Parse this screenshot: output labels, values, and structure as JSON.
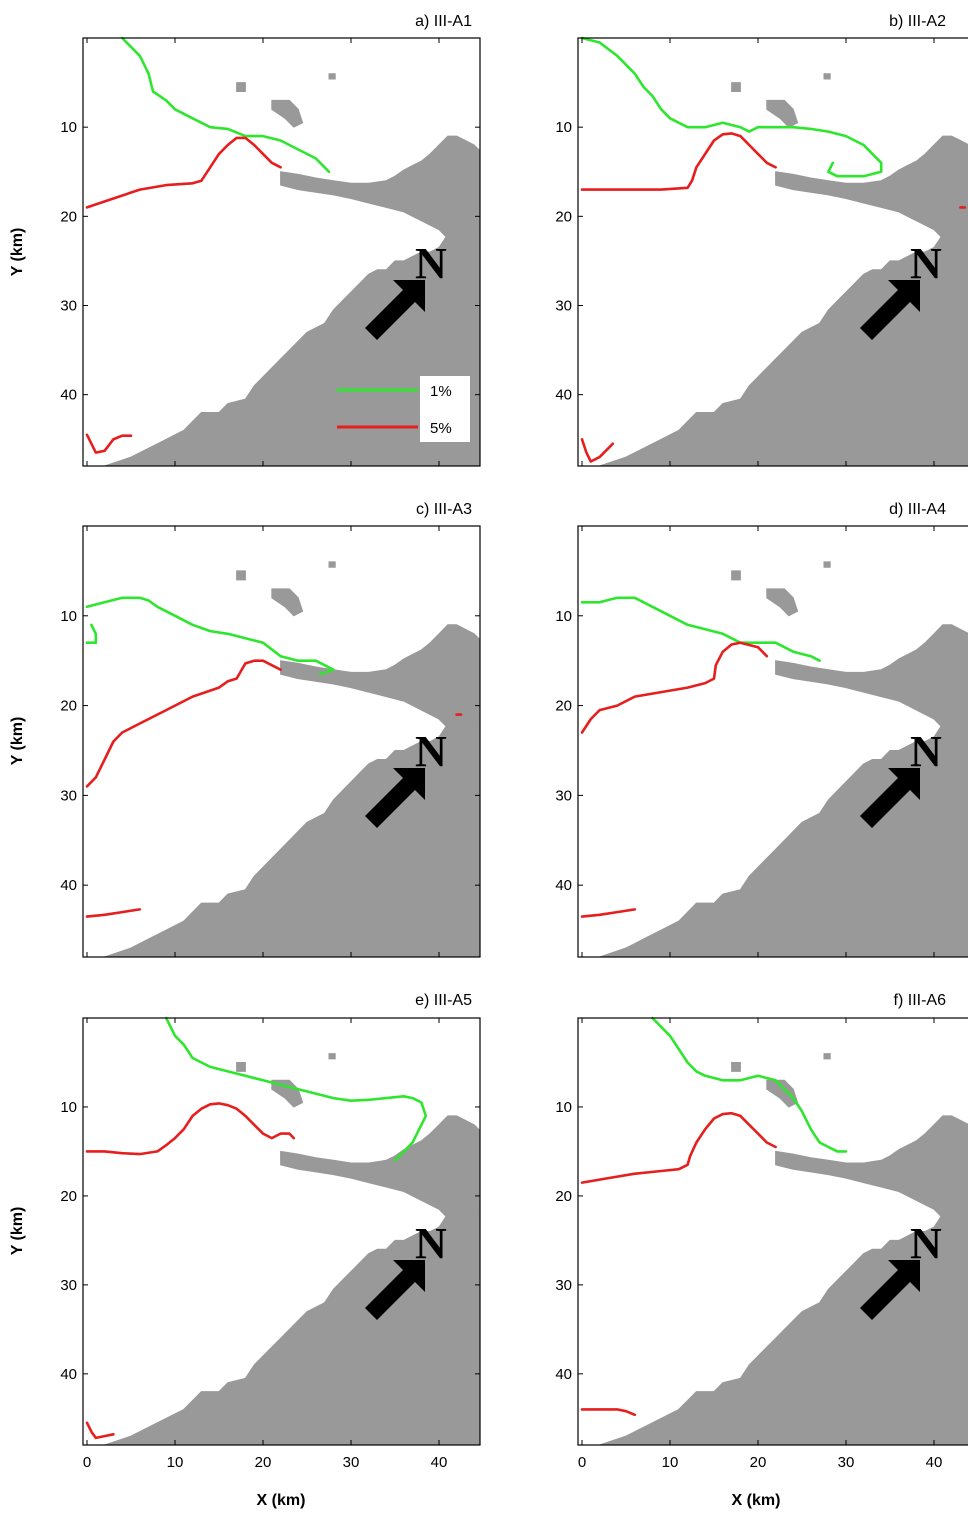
{
  "figure": {
    "y_label": "Y (km)",
    "x_label": "X (km)",
    "x_ticks": [
      0,
      10,
      20,
      30,
      40
    ],
    "y_ticks": [
      10,
      20,
      30,
      40
    ],
    "north_label": "N"
  },
  "legend": [
    {
      "label": "1%",
      "color": "#2ee62e"
    },
    {
      "label": "5%",
      "color": "#e61e1e"
    }
  ],
  "colors": {
    "land": "#999999",
    "c1": "#2ee62e",
    "c5": "#e61e1e",
    "arrow": "#000000"
  },
  "chart_data": [
    {
      "type": "line",
      "title": "a) III-A1",
      "xlim": [
        0,
        45
      ],
      "ylim": [
        48,
        0
      ],
      "series": [
        {
          "name": "1%",
          "x": [
            4,
            6,
            7,
            7.5,
            9,
            10,
            12,
            14,
            16,
            18,
            20,
            22,
            24,
            26,
            27.5
          ],
          "y": [
            0,
            2,
            4,
            6,
            7,
            8,
            9,
            10,
            10.2,
            11,
            11,
            11.5,
            12.5,
            13.5,
            15
          ]
        },
        {
          "name": "5%",
          "x": [
            0,
            3,
            6,
            9,
            12,
            13,
            14,
            15,
            16,
            17,
            18,
            19,
            20,
            21,
            22
          ],
          "y": [
            19,
            18,
            17,
            16.5,
            16.3,
            16,
            14.5,
            13,
            12,
            11.2,
            11.2,
            12,
            13,
            14,
            14.5
          ]
        },
        {
          "name": "5%",
          "x": [
            0,
            0.5,
            1,
            2,
            3,
            3.5,
            4,
            5
          ],
          "y": [
            44.5,
            45.5,
            46.5,
            46.3,
            45,
            44.8,
            44.6,
            44.6
          ]
        }
      ]
    },
    {
      "type": "line",
      "title": "b) III-A2",
      "xlim": [
        0,
        45
      ],
      "ylim": [
        48,
        0
      ],
      "series": [
        {
          "name": "1%",
          "x": [
            0,
            2,
            4,
            6,
            7,
            8,
            9,
            10,
            12,
            14,
            16,
            18,
            19,
            20,
            22,
            24,
            26,
            28,
            30,
            32,
            33,
            34,
            34,
            32,
            29,
            28,
            28.5
          ],
          "y": [
            0,
            0.5,
            2,
            4,
            5.5,
            6.5,
            8,
            9,
            10,
            10,
            9.5,
            10,
            10.5,
            10,
            10,
            10,
            10.2,
            10.5,
            11,
            12,
            13,
            14,
            15,
            15.5,
            15.5,
            15,
            14
          ]
        },
        {
          "name": "5%",
          "x": [
            0,
            3,
            6,
            9,
            12,
            12.5,
            13,
            14,
            15,
            16,
            17,
            18,
            19,
            20,
            21,
            22
          ],
          "y": [
            17,
            17,
            17,
            17,
            16.8,
            16,
            14.5,
            13,
            11.5,
            10.8,
            10.7,
            11,
            12,
            13,
            14,
            14.5
          ]
        },
        {
          "name": "5%",
          "x": [
            0,
            0.5,
            1,
            2,
            3,
            3.5
          ],
          "y": [
            45,
            46.5,
            47.5,
            47,
            46,
            45.5
          ]
        },
        {
          "name": "5%",
          "x": [
            43,
            43.5
          ],
          "y": [
            19,
            19
          ]
        }
      ]
    },
    {
      "type": "line",
      "title": "c) III-A3",
      "xlim": [
        0,
        45
      ],
      "ylim": [
        48,
        0
      ],
      "series": [
        {
          "name": "1%",
          "x": [
            0,
            2,
            4,
            6,
            7,
            8,
            10,
            12,
            14,
            16,
            18,
            20,
            22,
            24,
            26,
            28,
            26.5
          ],
          "y": [
            9,
            8.5,
            8,
            8,
            8.3,
            9,
            10,
            11,
            11.7,
            12,
            12.5,
            13,
            14.5,
            15,
            15,
            16,
            16.5
          ]
        },
        {
          "name": "1%",
          "x": [
            0.5,
            1,
            1,
            0
          ],
          "y": [
            11,
            12,
            13,
            13
          ]
        },
        {
          "name": "5%",
          "x": [
            0,
            1,
            2,
            3,
            4,
            6,
            9,
            12,
            15,
            16,
            17,
            18,
            19,
            20,
            21,
            22
          ],
          "y": [
            29,
            28,
            26,
            24,
            23,
            22,
            20.5,
            19,
            18,
            17.3,
            17,
            15.3,
            15,
            15,
            15.5,
            16
          ]
        },
        {
          "name": "5%",
          "x": [
            0,
            2,
            4,
            6
          ],
          "y": [
            43.5,
            43.3,
            43,
            42.7
          ]
        },
        {
          "name": "5%",
          "x": [
            42,
            42.5
          ],
          "y": [
            21,
            21
          ]
        }
      ]
    },
    {
      "type": "line",
      "title": "d) III-A4",
      "xlim": [
        0,
        45
      ],
      "ylim": [
        48,
        0
      ],
      "series": [
        {
          "name": "1%",
          "x": [
            0,
            2,
            4,
            6,
            8,
            10,
            12,
            14,
            16,
            18,
            20,
            22,
            24,
            26,
            27
          ],
          "y": [
            8.5,
            8.5,
            8,
            8,
            9,
            10,
            11,
            11.5,
            12,
            13,
            13,
            13,
            14,
            14.5,
            15
          ]
        },
        {
          "name": "5%",
          "x": [
            0,
            1,
            2,
            4,
            6,
            9,
            12,
            14,
            15,
            15.2,
            16,
            17,
            18,
            20,
            21
          ],
          "y": [
            23,
            21.5,
            20.5,
            20,
            19,
            18.5,
            18,
            17.5,
            17,
            15.5,
            14,
            13.2,
            13,
            13.5,
            14.5
          ]
        },
        {
          "name": "5%",
          "x": [
            0,
            2,
            4,
            6
          ],
          "y": [
            43.5,
            43.3,
            43,
            42.7
          ]
        }
      ]
    },
    {
      "type": "line",
      "title": "e) III-A5",
      "xlim": [
        0,
        45
      ],
      "ylim": [
        48,
        0
      ],
      "series": [
        {
          "name": "1%",
          "x": [
            9,
            10,
            11,
            12,
            14,
            16,
            18,
            20,
            22,
            24,
            26,
            28,
            30,
            32,
            34,
            36,
            37,
            38,
            38.5,
            38,
            37.5,
            37,
            36.5,
            36,
            35.5,
            35
          ],
          "y": [
            0,
            2,
            3,
            4.5,
            5.5,
            6,
            6.5,
            7,
            7.5,
            8,
            8.5,
            9,
            9.3,
            9.2,
            9,
            8.8,
            9,
            9.5,
            11,
            12,
            13,
            14,
            14.5,
            15,
            15.5,
            16
          ]
        },
        {
          "name": "5%",
          "x": [
            0,
            2,
            4,
            6,
            8,
            9,
            10,
            11,
            12,
            13,
            14,
            15,
            16,
            17,
            18,
            19,
            20,
            21,
            22,
            23,
            23.5
          ],
          "y": [
            15,
            15,
            15.2,
            15.3,
            15,
            14.3,
            13.5,
            12.5,
            11,
            10.2,
            9.7,
            9.6,
            9.8,
            10.2,
            11,
            12,
            13,
            13.5,
            13,
            13,
            13.5
          ]
        },
        {
          "name": "5%",
          "x": [
            0,
            0.5,
            1,
            2,
            3
          ],
          "y": [
            45.5,
            46.5,
            47.2,
            47,
            46.8
          ]
        }
      ]
    },
    {
      "type": "line",
      "title": "f) III-A6",
      "xlim": [
        0,
        45
      ],
      "ylim": [
        48,
        0
      ],
      "series": [
        {
          "name": "1%",
          "x": [
            8,
            10,
            11,
            12,
            13,
            14,
            16,
            18,
            20,
            22,
            23,
            24,
            25,
            26,
            27,
            28,
            29,
            30
          ],
          "y": [
            0,
            2,
            3.5,
            5,
            6,
            6.5,
            7,
            7,
            6.5,
            7,
            8,
            9,
            10.5,
            12.5,
            14,
            14.5,
            15,
            15
          ]
        },
        {
          "name": "5%",
          "x": [
            0,
            3,
            6,
            9,
            11,
            12,
            12.3,
            13,
            14,
            15,
            16,
            17,
            18,
            19,
            20,
            21,
            22
          ],
          "y": [
            18.5,
            18,
            17.5,
            17.2,
            17,
            16.5,
            15.5,
            14,
            12.5,
            11.3,
            10.8,
            10.7,
            11,
            12,
            13,
            14,
            14.5
          ]
        },
        {
          "name": "5%",
          "x": [
            0,
            2,
            4,
            5,
            6
          ],
          "y": [
            44,
            44,
            44,
            44.2,
            44.6
          ]
        }
      ]
    }
  ]
}
